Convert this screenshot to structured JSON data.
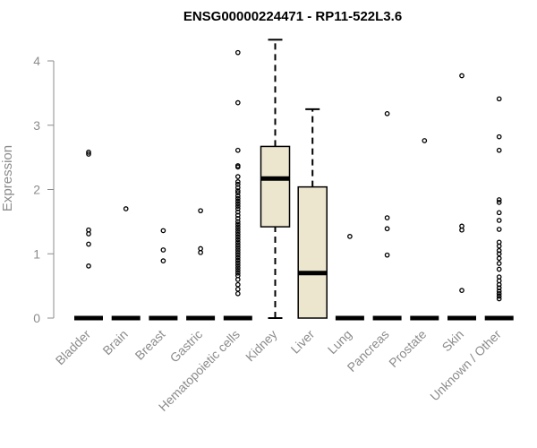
{
  "chart_data": {
    "type": "box",
    "title": "ENSG00000224471 - RP11-522L3.6",
    "ylabel": "Expression",
    "xlabel": "",
    "ylim": [
      0,
      4.3
    ],
    "yticks": [
      0,
      1,
      2,
      3,
      4
    ],
    "grid": false,
    "colors": {
      "box_fill": "#ede6cf",
      "line": "#000000",
      "axis": "#8c8c8c"
    },
    "categories": [
      "Bladder",
      "Brain",
      "Breast",
      "Gastric",
      "Hematopoietic cells",
      "Kidney",
      "Liver",
      "Lung",
      "Pancreas",
      "Prostate",
      "Skin",
      "Unknown / Other"
    ],
    "boxes": [
      {
        "category": "Bladder",
        "q1": 0,
        "median": 0,
        "q3": 0,
        "whisker_low": 0,
        "whisker_high": 0,
        "outliers": [
          2.58,
          2.55,
          1.37,
          1.31,
          1.15,
          0.81
        ]
      },
      {
        "category": "Brain",
        "q1": 0,
        "median": 0,
        "q3": 0,
        "whisker_low": 0,
        "whisker_high": 0,
        "outliers": [
          1.7
        ]
      },
      {
        "category": "Breast",
        "q1": 0,
        "median": 0,
        "q3": 0,
        "whisker_low": 0,
        "whisker_high": 0,
        "outliers": [
          1.36,
          1.06,
          0.89
        ]
      },
      {
        "category": "Gastric",
        "q1": 0,
        "median": 0,
        "q3": 0,
        "whisker_low": 0,
        "whisker_high": 0,
        "outliers": [
          1.67,
          1.08,
          1.02
        ]
      },
      {
        "category": "Hematopoietic cells",
        "q1": 0,
        "median": 0,
        "q3": 0,
        "whisker_low": 0,
        "whisker_high": 0,
        "outliers": [
          4.13,
          3.35,
          2.61,
          2.37,
          2.35,
          2.2,
          2.12,
          2.08,
          2.03,
          1.98,
          1.95,
          1.9,
          1.86,
          1.82,
          1.78,
          1.74,
          1.7,
          1.65,
          1.6,
          1.55,
          1.5,
          1.46,
          1.42,
          1.38,
          1.34,
          1.3,
          1.26,
          1.22,
          1.18,
          1.14,
          1.1,
          1.06,
          1.02,
          0.98,
          0.94,
          0.9,
          0.86,
          0.82,
          0.78,
          0.74,
          0.7,
          0.66,
          0.6,
          0.52,
          0.45,
          0.38
        ]
      },
      {
        "category": "Kidney",
        "q1": 1.42,
        "median": 2.17,
        "q3": 2.67,
        "whisker_low": 0,
        "whisker_high": 4.33,
        "outliers": []
      },
      {
        "category": "Liver",
        "q1": 0,
        "median": 0.7,
        "q3": 2.04,
        "whisker_low": 0,
        "whisker_high": 3.25,
        "outliers": []
      },
      {
        "category": "Lung",
        "q1": 0,
        "median": 0,
        "q3": 0,
        "whisker_low": 0,
        "whisker_high": 0,
        "outliers": [
          1.27
        ]
      },
      {
        "category": "Pancreas",
        "q1": 0,
        "median": 0,
        "q3": 0,
        "whisker_low": 0,
        "whisker_high": 0,
        "outliers": [
          3.18,
          1.56,
          1.39,
          0.98
        ]
      },
      {
        "category": "Prostate",
        "q1": 0,
        "median": 0,
        "q3": 0,
        "whisker_low": 0,
        "whisker_high": 0,
        "outliers": [
          2.76
        ]
      },
      {
        "category": "Skin",
        "q1": 0,
        "median": 0,
        "q3": 0,
        "whisker_low": 0,
        "whisker_high": 0,
        "outliers": [
          3.77,
          1.43,
          1.37,
          0.43
        ]
      },
      {
        "category": "Unknown / Other",
        "q1": 0,
        "median": 0,
        "q3": 0,
        "whisker_low": 0,
        "whisker_high": 0,
        "outliers": [
          3.41,
          2.82,
          2.61,
          1.84,
          1.8,
          1.64,
          1.52,
          1.38,
          1.18,
          1.12,
          1.05,
          1.0,
          0.93,
          0.85,
          0.76,
          0.64,
          0.58,
          0.52,
          0.47,
          0.42,
          0.38,
          0.34,
          0.3
        ]
      }
    ]
  }
}
